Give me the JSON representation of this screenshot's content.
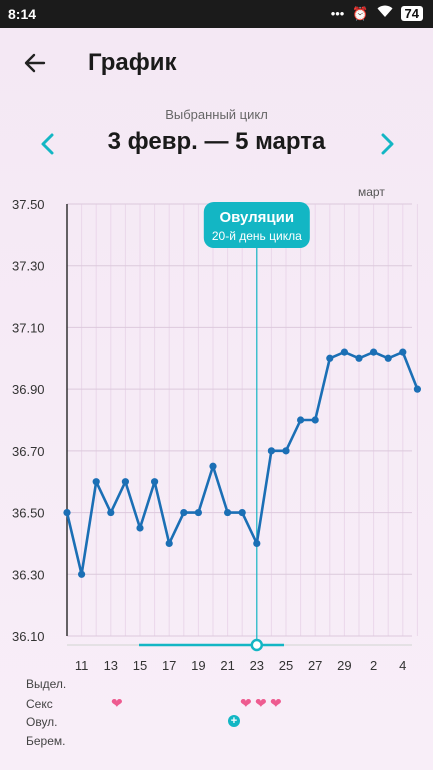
{
  "status_bar": {
    "time": "8:14",
    "battery": "74"
  },
  "header": {
    "title": "График",
    "back_icon": "arrow-left-icon"
  },
  "cycle": {
    "caption": "Выбранный цикл",
    "range": "3 февр. — 5 марта",
    "prev_icon": "chevron-left-icon",
    "next_icon": "chevron-right-icon"
  },
  "colors": {
    "accent": "#13b6c4",
    "line": "#1b6fb5",
    "heart": "#ee5b90"
  },
  "chart_data": {
    "type": "line",
    "month_label": "март",
    "ylim": [
      36.1,
      37.5
    ],
    "y_ticks": [
      "37.50",
      "37.30",
      "37.10",
      "36.90",
      "36.70",
      "36.50",
      "36.30",
      "36.10"
    ],
    "x_tick_labels": [
      "11",
      "13",
      "15",
      "17",
      "19",
      "21",
      "23",
      "25",
      "27",
      "29",
      "2",
      "4"
    ],
    "series": [
      {
        "values": [
          36.5,
          36.3,
          36.6,
          36.5,
          36.6,
          36.45,
          36.6,
          36.4,
          36.5,
          36.5,
          36.65,
          36.5,
          36.5,
          36.4,
          36.7,
          36.7,
          36.8,
          36.8,
          37.0,
          37.02,
          37.0,
          37.02,
          37.0,
          37.02,
          36.9
        ]
      }
    ],
    "ovulation_index": 13,
    "annotation": {
      "title": "Овуляции",
      "subtitle": "20-й день цикла"
    }
  },
  "legend_rows": {
    "bleeding": "Выдел.",
    "sex": "Секс",
    "ovulation": "Овул.",
    "pregnancy": "Берем."
  },
  "markers": {
    "sex_heart_symbol": "❤",
    "ovulation_symbol": "+"
  }
}
